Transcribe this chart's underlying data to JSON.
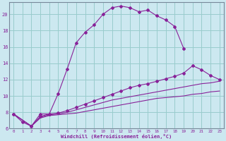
{
  "xlabel": "Windchill (Refroidissement éolien,°C)",
  "background_color": "#cce8f0",
  "grid_color": "#99cccc",
  "line_color": "#882299",
  "xlim": [
    -0.5,
    23.5
  ],
  "ylim": [
    6,
    21.5
  ],
  "yticks": [
    6,
    8,
    10,
    12,
    14,
    16,
    18,
    20
  ],
  "xticks": [
    0,
    1,
    2,
    3,
    4,
    5,
    6,
    7,
    8,
    9,
    10,
    11,
    12,
    13,
    14,
    15,
    16,
    17,
    18,
    19,
    20,
    21,
    22,
    23
  ],
  "series": [
    {
      "x": [
        0,
        1,
        2,
        3,
        4,
        5,
        6,
        7,
        8,
        9,
        10,
        11,
        12,
        13,
        14,
        15,
        16,
        17,
        18,
        19
      ],
      "y": [
        7.8,
        6.8,
        6.3,
        7.8,
        7.8,
        10.3,
        13.3,
        16.5,
        17.8,
        18.7,
        20.0,
        20.8,
        21.0,
        20.8,
        20.3,
        20.5,
        19.8,
        19.3,
        18.5,
        15.8
      ],
      "marker": true
    },
    {
      "x": [
        0,
        2,
        3,
        4,
        5,
        6,
        7,
        8,
        9,
        10,
        11,
        12,
        13,
        14,
        15,
        16,
        17,
        18,
        19,
        20,
        21,
        22,
        23
      ],
      "y": [
        7.8,
        6.3,
        7.5,
        7.8,
        7.9,
        8.2,
        8.6,
        9.0,
        9.4,
        9.8,
        10.2,
        10.6,
        11.0,
        11.3,
        11.5,
        11.8,
        12.1,
        12.4,
        12.8,
        13.7,
        13.2,
        12.5,
        12.0
      ],
      "marker": true
    },
    {
      "x": [
        0,
        2,
        3,
        4,
        5,
        6,
        7,
        8,
        9,
        10,
        11,
        12,
        13,
        14,
        15,
        16,
        17,
        18,
        19,
        20,
        21,
        22,
        23
      ],
      "y": [
        7.8,
        6.3,
        7.4,
        7.7,
        7.8,
        8.0,
        8.3,
        8.6,
        8.9,
        9.2,
        9.5,
        9.7,
        9.9,
        10.1,
        10.3,
        10.5,
        10.7,
        10.9,
        11.1,
        11.3,
        11.5,
        11.6,
        11.8
      ],
      "marker": false
    },
    {
      "x": [
        0,
        2,
        3,
        4,
        5,
        6,
        7,
        8,
        9,
        10,
        11,
        12,
        13,
        14,
        15,
        16,
        17,
        18,
        19,
        20,
        21,
        22,
        23
      ],
      "y": [
        7.8,
        6.3,
        7.3,
        7.6,
        7.7,
        7.8,
        7.9,
        8.1,
        8.3,
        8.5,
        8.7,
        8.9,
        9.1,
        9.3,
        9.5,
        9.7,
        9.8,
        9.9,
        10.0,
        10.2,
        10.3,
        10.5,
        10.6
      ],
      "marker": false
    }
  ]
}
